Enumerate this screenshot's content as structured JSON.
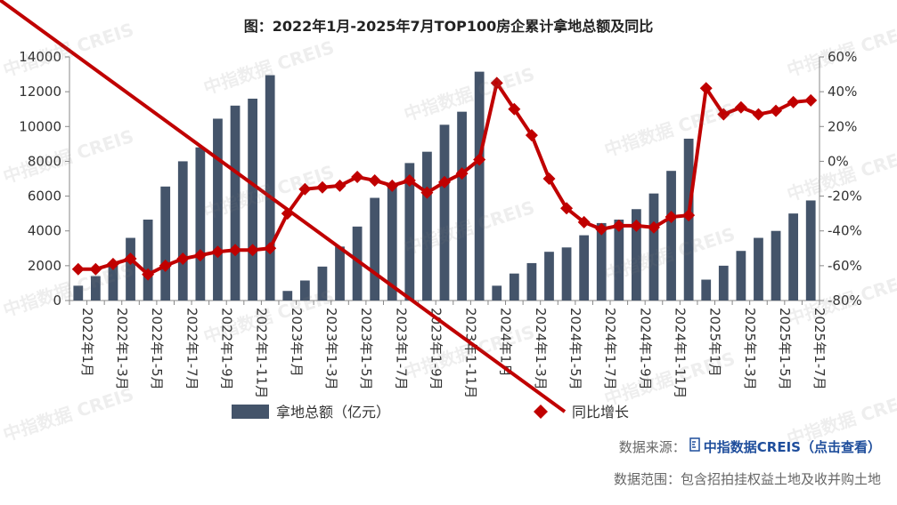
{
  "title": "图：2022年1月-2025年7月TOP100房企累计拿地总额及同比",
  "watermark": "中指数据 CREIS",
  "source": {
    "label": "数据来源：",
    "link": "中指数据CREIS（点击查看）",
    "icon": "document-icon"
  },
  "scope": "数据范围：包含招拍挂权益土地及收并购土地",
  "colors": {
    "bar": "#44546a",
    "line": "#c00000"
  },
  "chart_data": {
    "type": "bar+line",
    "x": [
      "2022年1月",
      "2022年2月",
      "2022年3月",
      "2022年4月",
      "2022年5月",
      "2022年6月",
      "2022年7月",
      "2022年8月",
      "2022年9月",
      "2022年10月",
      "2022年11月",
      "2022年12月",
      "2023年1月",
      "2023年2月",
      "2023年3月",
      "2023年4月",
      "2023年5月",
      "2023年6月",
      "2023年7月",
      "2023年8月",
      "2023年9月",
      "2023年10月",
      "2023年11月",
      "2023年12月",
      "2024年1月",
      "2024年2月",
      "2024年3月",
      "2024年4月",
      "2024年5月",
      "2024年6月",
      "2024年7月",
      "2024年8月",
      "2024年9月",
      "2024年10月",
      "2024年11月",
      "2024年12月",
      "2025年1月",
      "2025年2月",
      "2025年3月",
      "2025年4月",
      "2025年5月",
      "2025年6月",
      "2025年7月"
    ],
    "tick_labels": [
      "2022年1月",
      "2022年1-3月",
      "2022年1-5月",
      "2022年1-7月",
      "2022年1-9月",
      "2022年1-11月",
      "2023年1月",
      "2023年1-3月",
      "2023年1-5月",
      "2023年1-7月",
      "2023年1-9月",
      "2023年1-11月",
      "2024年1月",
      "2024年1-3月",
      "2024年1-5月",
      "2024年1-7月",
      "2024年1-9月",
      "2024年1-11月",
      "2025年1月",
      "2025年1-3月",
      "2025年1-5月",
      "2025年1-7月"
    ],
    "series": [
      {
        "name": "拿地总额（亿元）",
        "type": "bar",
        "axis": "left",
        "values": [
          850,
          1400,
          2000,
          3600,
          4650,
          6550,
          8000,
          8800,
          10450,
          11200,
          11600,
          12950,
          550,
          1150,
          1950,
          3100,
          4250,
          5900,
          6650,
          7900,
          8550,
          10100,
          10850,
          13150,
          850,
          1550,
          2150,
          2800,
          3050,
          3750,
          4450,
          4650,
          5250,
          6150,
          7450,
          9300,
          1200,
          2000,
          2850,
          3600,
          4000,
          5000,
          5750
        ]
      },
      {
        "name": "同比增长",
        "type": "line",
        "axis": "right",
        "values": [
          -62,
          -62,
          -59,
          -56,
          -65,
          -60,
          -56,
          -54,
          -52,
          -51,
          -51,
          -50,
          -30,
          -16,
          -15,
          -14,
          -9,
          -11,
          -14,
          -11,
          -18,
          -12,
          -7,
          1,
          45,
          30,
          15,
          -10,
          -27,
          -35,
          -39,
          -37,
          -37,
          -38,
          -32,
          -31,
          42,
          27,
          31,
          27,
          29,
          34,
          35
        ]
      }
    ],
    "y_left": {
      "min": 0,
      "max": 14000,
      "ticks": [
        0,
        2000,
        4000,
        6000,
        8000,
        10000,
        12000,
        14000
      ]
    },
    "y_right": {
      "min": -80,
      "max": 60,
      "ticks": [
        "-80%",
        "-60%",
        "-40%",
        "-20%",
        "0%",
        "20%",
        "40%",
        "60%"
      ]
    },
    "legend": "bottom"
  }
}
